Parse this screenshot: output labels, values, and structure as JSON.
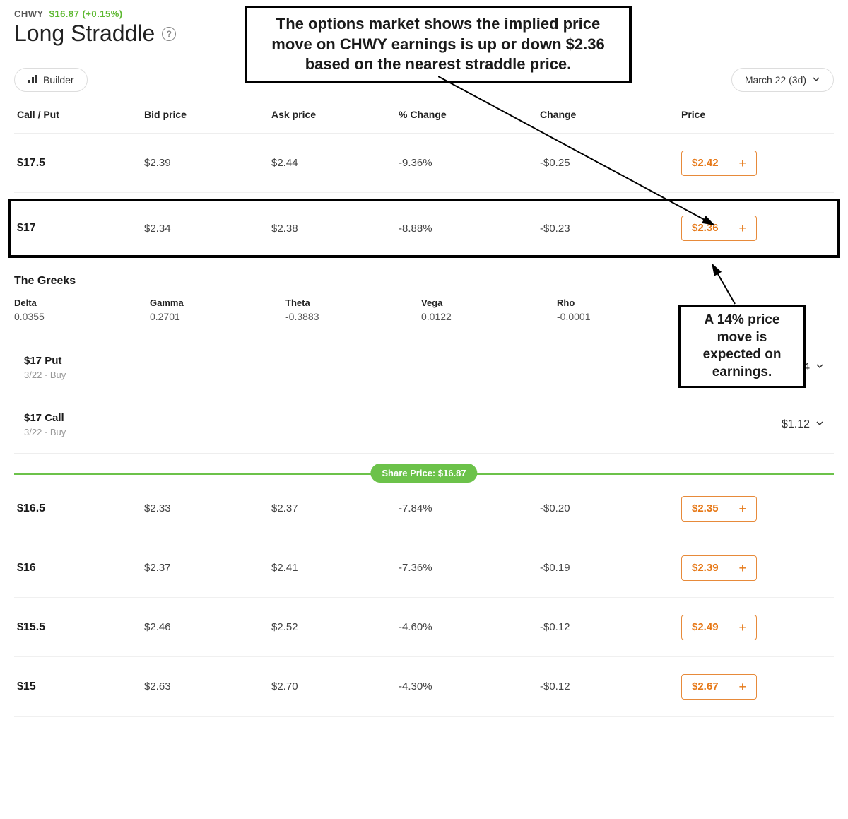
{
  "header": {
    "ticker": "CHWY",
    "price_text": "$16.87 (+0.15%)",
    "strategy": "Long Straddle"
  },
  "callouts": {
    "top": "The options market shows the implied price move on CHWY earnings is up or down $2.36 based on the nearest straddle price.",
    "side": "A 14% price move is expected on earnings."
  },
  "toolbar": {
    "builder_label": "Builder",
    "expiry_label": "March 22 (3d)"
  },
  "columns": {
    "c0": "Call / Put",
    "c1": "Bid price",
    "c2": "Ask price",
    "c3": "% Change",
    "c4": "Change",
    "c5": "Price"
  },
  "rows_top": [
    {
      "strike": "$17.5",
      "bid": "$2.39",
      "ask": "$2.44",
      "pct": "-9.36%",
      "chg": "-$0.25",
      "price": "$2.42"
    },
    {
      "strike": "$17",
      "bid": "$2.34",
      "ask": "$2.38",
      "pct": "-8.88%",
      "chg": "-$0.23",
      "price": "$2.36"
    }
  ],
  "greeks": {
    "title": "The Greeks",
    "items": [
      {
        "label": "Delta",
        "val": "0.0355"
      },
      {
        "label": "Gamma",
        "val": "0.2701"
      },
      {
        "label": "Theta",
        "val": "-0.3883"
      },
      {
        "label": "Vega",
        "val": "0.0122"
      },
      {
        "label": "Rho",
        "val": "-0.0001"
      }
    ]
  },
  "legs": [
    {
      "title": "$17 Put",
      "sub": "3/22 · Buy",
      "price": "$1.24"
    },
    {
      "title": "$17 Call",
      "sub": "3/22 · Buy",
      "price": "$1.12"
    }
  ],
  "share_price": {
    "label": "Share Price: $16.87"
  },
  "rows_bottom": [
    {
      "strike": "$16.5",
      "bid": "$2.33",
      "ask": "$2.37",
      "pct": "-7.84%",
      "chg": "-$0.20",
      "price": "$2.35"
    },
    {
      "strike": "$16",
      "bid": "$2.37",
      "ask": "$2.41",
      "pct": "-7.36%",
      "chg": "-$0.19",
      "price": "$2.39"
    },
    {
      "strike": "$15.5",
      "bid": "$2.46",
      "ask": "$2.52",
      "pct": "-4.60%",
      "chg": "-$0.12",
      "price": "$2.49"
    },
    {
      "strike": "$15",
      "bid": "$2.63",
      "ask": "$2.70",
      "pct": "-4.30%",
      "chg": "-$0.12",
      "price": "$2.67"
    }
  ],
  "colors": {
    "accent_green": "#6cc24a",
    "accent_orange": "#e67817",
    "border_orange": "#e78a3a"
  }
}
